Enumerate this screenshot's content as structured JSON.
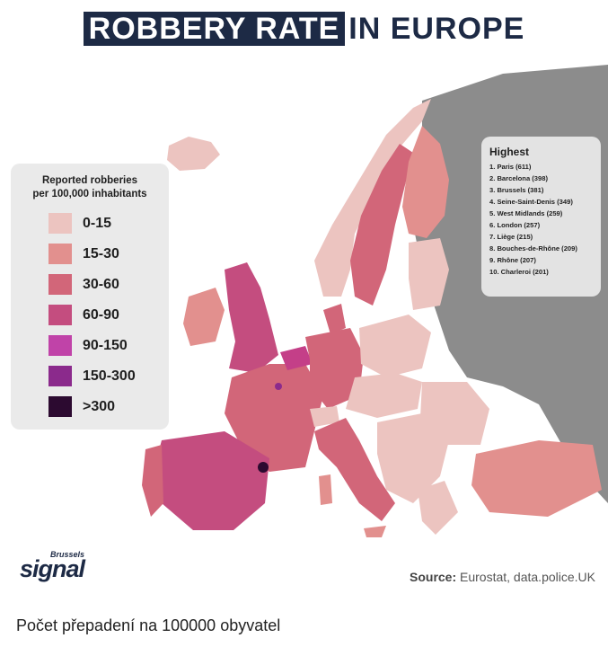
{
  "title": {
    "highlighted": "ROBBERY RATE",
    "rest": "IN EUROPE"
  },
  "legend": {
    "title_line1": "Reported robberies",
    "title_line2": "per 100,000 inhabitants",
    "items": [
      {
        "label": "0-15",
        "color": "#ecc4c0"
      },
      {
        "label": "15-30",
        "color": "#e2908e"
      },
      {
        "label": "30-60",
        "color": "#d26679"
      },
      {
        "label": "60-90",
        "color": "#c44d7f"
      },
      {
        "label": "90-150",
        "color": "#c043a8"
      },
      {
        "label": "150-300",
        "color": "#8b2a8c"
      },
      {
        "label": ">300",
        "color": "#2c0a30"
      }
    ]
  },
  "highest": {
    "title": "Highest",
    "items": [
      "1. Paris (611)",
      "2. Barcelona (398)",
      "3. Brussels (381)",
      "4. Seine-Saint-Denis (349)",
      "5. West Midlands (259)",
      "6. London (257)",
      "7. Liège (215)",
      "8. Bouches-de-Rhône (209)",
      "9. Rhône (207)",
      "10. Charleroi (201)"
    ]
  },
  "logo": {
    "small": "Brussels",
    "big": "signal"
  },
  "source": {
    "label": "Source:",
    "text": "Eurostat, data.police.UK"
  },
  "caption": "Počet přepadení na 100000 obyvatel",
  "colors": {
    "no_data": "#8c8c8c",
    "title_navy": "#1d2a45"
  }
}
